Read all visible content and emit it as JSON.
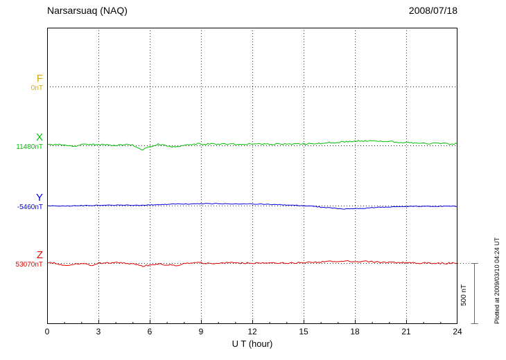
{
  "header": {
    "title": "Narsarsuaq (NAQ)",
    "date": "2008/07/18"
  },
  "axis": {
    "xlabel": "U T (hour)",
    "x_ticks": [
      0,
      3,
      6,
      9,
      12,
      15,
      18,
      21,
      24
    ],
    "x_min": 0,
    "x_max": 24
  },
  "scalebar": {
    "label": "500 nT",
    "nT": 500
  },
  "footer_note": "Plotted at 2009/03/10 04:24 UT",
  "chart_data": {
    "type": "line",
    "title": "Narsarsuaq (NAQ) magnetogram",
    "subtitle": "2008/07/18",
    "xlabel": "U T (hour)",
    "ylabel": "nT",
    "x_range": [
      0,
      24
    ],
    "x_step_hours": 0.5,
    "grid": "dotted vertical gridlines every 3 h; dotted horizontal baseline per channel",
    "legend_position": "left",
    "scale_bar_nT": 500,
    "series": [
      {
        "name": "F",
        "color": "#dfa500",
        "baseline_label": "0nT",
        "baseline_nT": 0,
        "trace_visible": false,
        "noise_nT": 0,
        "values": []
      },
      {
        "name": "X",
        "color": "#00c000",
        "baseline_label": "11480nT",
        "baseline_nT": 11480,
        "trace_visible": true,
        "noise_nT": 6,
        "values": [
          8,
          10,
          2,
          -10,
          5,
          8,
          6,
          4,
          0,
          5,
          3,
          -38,
          -14,
          8,
          0,
          -16,
          5,
          10,
          12,
          10,
          11,
          12,
          10,
          11,
          10,
          10,
          11,
          10,
          11,
          12,
          12,
          15,
          18,
          22,
          26,
          31,
          34,
          37,
          37,
          34,
          31,
          27,
          23,
          20,
          18,
          16,
          15,
          14,
          13
        ]
      },
      {
        "name": "Y",
        "color": "#0000e0",
        "baseline_label": "-5460nT",
        "baseline_nT": -5460,
        "trace_visible": true,
        "noise_nT": 3,
        "values": [
          0,
          -2,
          -5,
          -3,
          0,
          2,
          3,
          3,
          4,
          4,
          2,
          3,
          5,
          7,
          10,
          12,
          14,
          15,
          16,
          17,
          16,
          16,
          15,
          14,
          13,
          12,
          10,
          8,
          5,
          3,
          0,
          -5,
          -12,
          -18,
          -24,
          -27,
          -26,
          -22,
          -17,
          -13,
          -10,
          -8,
          -7,
          -6,
          -6,
          -5,
          -5,
          -5,
          -5
        ]
      },
      {
        "name": "Z",
        "color": "#e00000",
        "baseline_label": "53070nT",
        "baseline_nT": 53070,
        "trace_visible": true,
        "noise_nT": 7,
        "values": [
          2,
          0,
          -22,
          -12,
          -5,
          -18,
          -4,
          0,
          2,
          0,
          -3,
          -24,
          -18,
          -6,
          -14,
          -20,
          -4,
          0,
          2,
          0,
          1,
          2,
          0,
          1,
          0,
          2,
          1,
          0,
          2,
          1,
          3,
          8,
          10,
          12,
          13,
          14,
          13,
          12,
          10,
          8,
          5,
          3,
          2,
          1,
          0,
          0,
          -1,
          -1,
          -2
        ]
      }
    ]
  }
}
